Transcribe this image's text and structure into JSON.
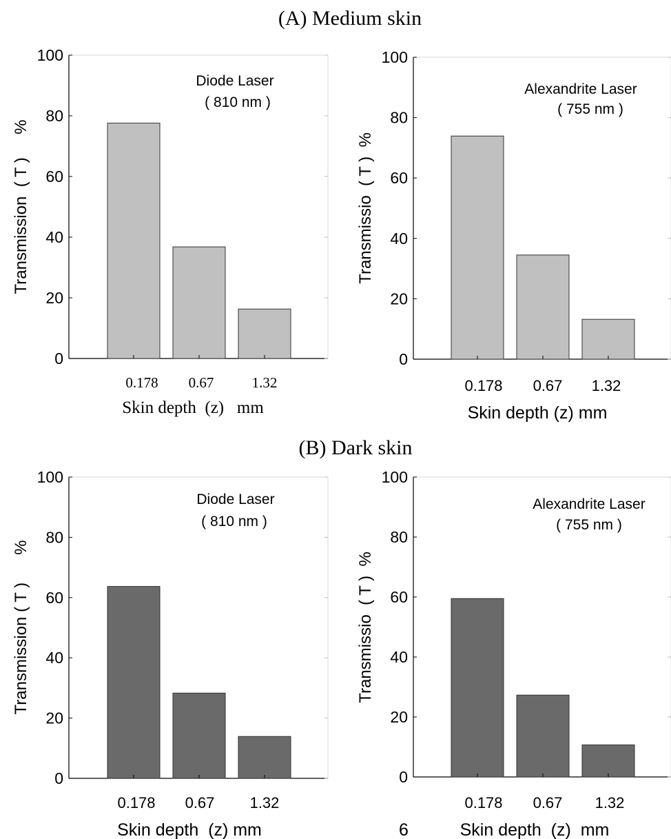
{
  "section_titles": [
    "(A) Medium skin",
    "(B) Dark skin"
  ],
  "page_number": "6",
  "chart_data": [
    {
      "type": "bar",
      "section": "(A) Medium skin",
      "annotation": [
        "Diode Laser",
        "( 810 nm )"
      ],
      "ylabel": "Transmission  ( T )     %",
      "xlabel": "Skin depth  (z)   mm",
      "categories": [
        "0.178",
        "0.67",
        "1.32"
      ],
      "values": [
        77.6,
        36.8,
        16.3
      ],
      "ylim": [
        0,
        100
      ],
      "yticks": [
        0,
        20,
        40,
        60,
        80,
        100
      ],
      "bar_color": "#c0c0c0",
      "tick_font": "serif"
    },
    {
      "type": "bar",
      "section": "(A) Medium skin",
      "annotation": [
        "Alexandrite Laser",
        "( 755 nm )"
      ],
      "ylabel": "Transmissio  ( T )  %",
      "xlabel": "Skin depth (z) mm",
      "categories": [
        "0.178",
        "0.67",
        "1.32"
      ],
      "values": [
        73.9,
        34.5,
        13.2
      ],
      "ylim": [
        0,
        100
      ],
      "yticks": [
        0,
        20,
        40,
        60,
        80,
        100
      ],
      "bar_color": "#c0c0c0",
      "tick_font": "sans"
    },
    {
      "type": "bar",
      "section": "(B) Dark skin",
      "annotation": [
        "Diode Laser",
        "( 810 nm )"
      ],
      "ylabel": "Transmission ( T )      %",
      "xlabel": "Skin depth  (z) mm",
      "categories": [
        "0.178",
        "0.67",
        "1.32"
      ],
      "values": [
        63.7,
        28.3,
        13.9
      ],
      "ylim": [
        0,
        100
      ],
      "yticks": [
        0,
        20,
        40,
        60,
        80,
        100
      ],
      "bar_color": "#6a6a6a",
      "tick_font": "sans"
    },
    {
      "type": "bar",
      "section": "(B) Dark skin",
      "annotation": [
        "Alexandrite Laser",
        "( 755 nm )"
      ],
      "ylabel": "Transmissio  ( T )  %",
      "xlabel": "Skin depth  (z)  mm",
      "categories": [
        "0.178",
        "0.67",
        "1.32"
      ],
      "values": [
        59.5,
        27.3,
        10.7
      ],
      "ylim": [
        0,
        100
      ],
      "yticks": [
        0,
        20,
        40,
        60,
        80,
        100
      ],
      "bar_color": "#6a6a6a",
      "tick_font": "sans"
    }
  ]
}
